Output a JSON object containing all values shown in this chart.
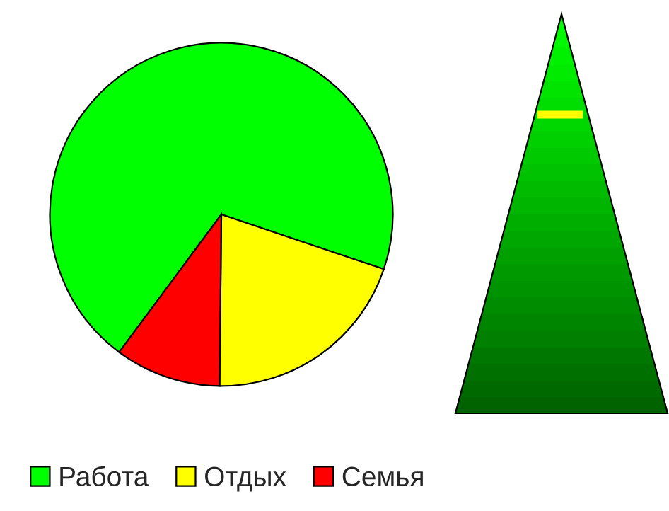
{
  "chart_data": {
    "type": "pie",
    "categories": [
      "Работа",
      "Отдых",
      "Семья"
    ],
    "values": [
      70,
      20,
      10
    ],
    "colors": [
      "#00ff00",
      "#ffff00",
      "#ff0000"
    ],
    "legend": "bottom"
  }
}
